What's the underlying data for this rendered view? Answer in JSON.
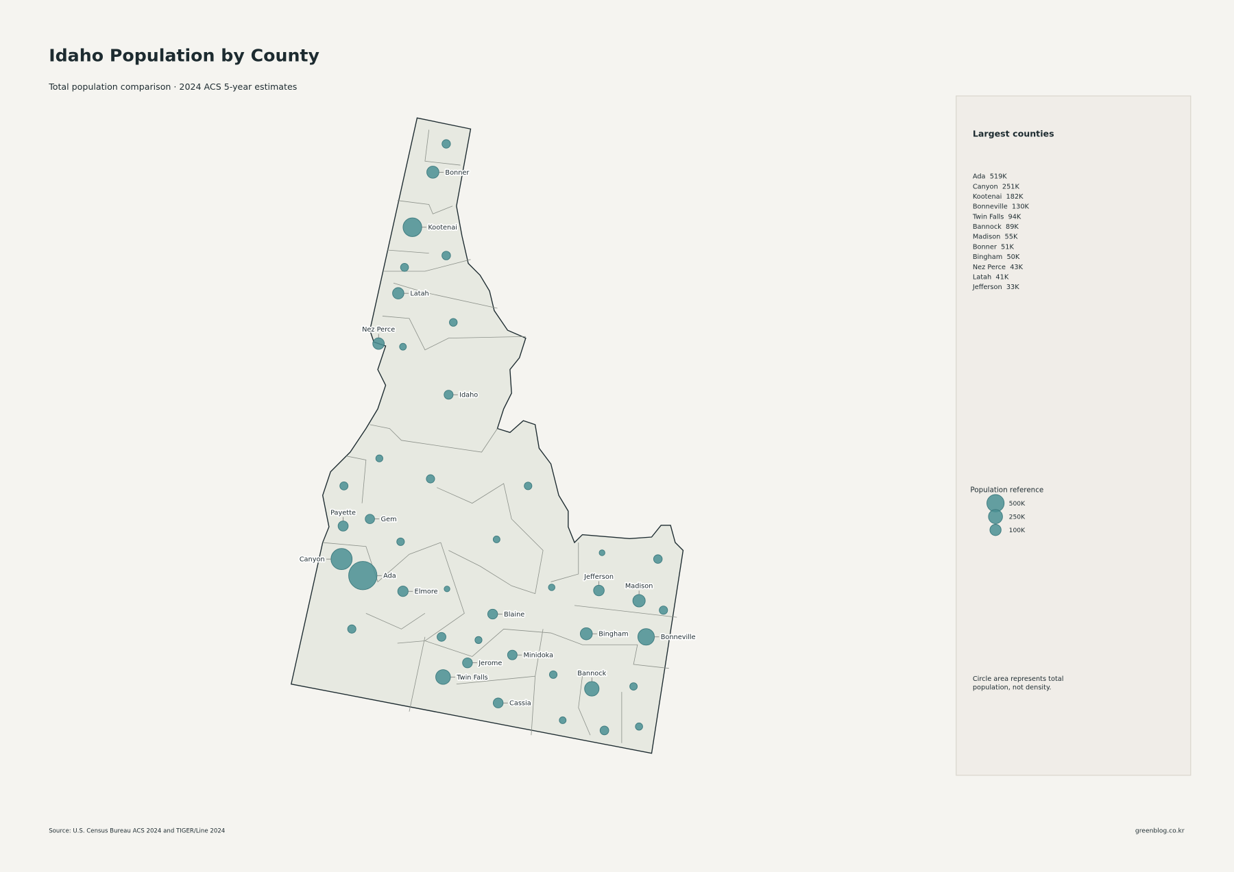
{
  "title": "Idaho Population by County",
  "subtitle": "Total population comparison · 2024 ACS 5-year estimates",
  "panel": {
    "heading": "Largest counties",
    "items": [
      "Ada  519K",
      "Canyon  251K",
      "Kootenai  182K",
      "Bonneville  130K",
      "Twin Falls  94K",
      "Bannock  89K",
      "Madison  55K",
      "Bonner  51K",
      "Bingham  50K",
      "Nez Perce  43K",
      "Latah  41K",
      "Jefferson  33K"
    ],
    "note": [
      "Circle area represents total",
      "population, not density."
    ]
  },
  "legend": {
    "title": "Population reference",
    "color": "#4a8f93",
    "sizes": [
      {
        "value": 500000,
        "label": "500K"
      },
      {
        "value": 250000,
        "label": "250K"
      },
      {
        "value": 100000,
        "label": "100K"
      }
    ]
  },
  "bubble_color": "#4a8f93",
  "counties": [
    {
      "name": null,
      "population": 13000
    },
    {
      "name": "Bonner",
      "population": 51000
    },
    {
      "name": "Kootenai",
      "population": 182000
    },
    {
      "name": null,
      "population": 14000
    },
    {
      "name": null,
      "population": 10000
    },
    {
      "name": "Latah",
      "population": 41000
    },
    {
      "name": null,
      "population": 9000
    },
    {
      "name": "Nez Perce",
      "population": 43000
    },
    {
      "name": null,
      "population": 4000
    },
    {
      "name": "Idaho",
      "population": 17000
    },
    {
      "name": null,
      "population": 5000
    },
    {
      "name": null,
      "population": 12000
    },
    {
      "name": null,
      "population": 11000
    },
    {
      "name": null,
      "population": 8000
    },
    {
      "name": "Payette",
      "population": 27000
    },
    {
      "name": "Gem",
      "population": 20000
    },
    {
      "name": null,
      "population": 8000
    },
    {
      "name": null,
      "population": 4000
    },
    {
      "name": null,
      "population": 1000
    },
    {
      "name": null,
      "population": 14000
    },
    {
      "name": "Canyon",
      "population": 251000
    },
    {
      "name": "Ada",
      "population": 519000
    },
    {
      "name": "Elmore",
      "population": 30000
    },
    {
      "name": null,
      "population": 1000
    },
    {
      "name": null,
      "population": 3000
    },
    {
      "name": "Jefferson",
      "population": 33000
    },
    {
      "name": "Madison",
      "population": 55000
    },
    {
      "name": null,
      "population": 12000
    },
    {
      "name": "Blaine",
      "population": 25000
    },
    {
      "name": null,
      "population": 12000
    },
    {
      "name": "Bingham",
      "population": 50000
    },
    {
      "name": "Bonneville",
      "population": 130000
    },
    {
      "name": null,
      "population": 16000
    },
    {
      "name": null,
      "population": 5000
    },
    {
      "name": "Minidoka",
      "population": 22000
    },
    {
      "name": "Jerome",
      "population": 25000
    },
    {
      "name": null,
      "population": 8000
    },
    {
      "name": "Twin Falls",
      "population": 94000
    },
    {
      "name": "Bannock",
      "population": 89000
    },
    {
      "name": null,
      "population": 7000
    },
    {
      "name": "Cassia",
      "population": 25000
    },
    {
      "name": null,
      "population": 4000
    },
    {
      "name": null,
      "population": 15000
    },
    {
      "name": null,
      "population": 6000
    }
  ],
  "source": "Source: U.S. Census Bureau ACS 2024 and TIGER/Line 2024",
  "credit": "greenblog.co.kr"
}
